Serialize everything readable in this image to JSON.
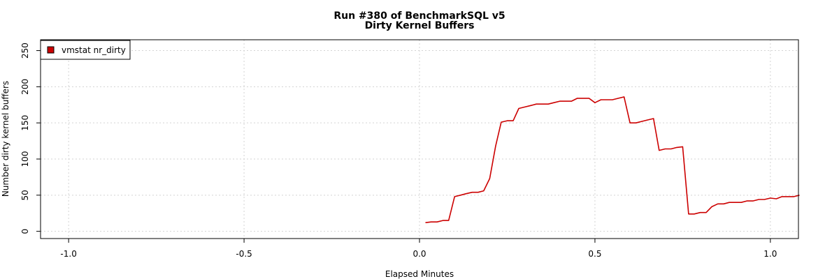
{
  "chart_data": {
    "type": "line",
    "title": "Run #380 of BenchmarkSQL v5",
    "subtitle": "Dirty Kernel Buffers",
    "xlabel": "Elapsed Minutes",
    "ylabel": "Number dirty kernel buffers",
    "xlim": [
      -1.08,
      1.08
    ],
    "ylim": [
      -10,
      265
    ],
    "x_ticks": [
      -1.0,
      -0.5,
      0.0,
      0.5,
      1.0
    ],
    "x_tick_labels": [
      "-1.0",
      "-0.5",
      "0.0",
      "0.5",
      "1.0"
    ],
    "y_ticks": [
      0,
      50,
      100,
      150,
      200,
      250
    ],
    "y_tick_labels": [
      "0",
      "50",
      "100",
      "150",
      "200",
      "250"
    ],
    "grid": true,
    "legend": {
      "position": "top-left",
      "entries": [
        "vmstat nr_dirty"
      ]
    },
    "series": [
      {
        "name": "vmstat nr_dirty",
        "color": "#cc0000",
        "x": [
          0.017,
          0.033,
          0.05,
          0.067,
          0.083,
          0.1,
          0.117,
          0.133,
          0.15,
          0.167,
          0.183,
          0.2,
          0.217,
          0.233,
          0.25,
          0.267,
          0.283,
          0.3,
          0.317,
          0.333,
          0.35,
          0.367,
          0.383,
          0.4,
          0.417,
          0.433,
          0.45,
          0.467,
          0.483,
          0.5,
          0.517,
          0.533,
          0.55,
          0.567,
          0.583,
          0.6,
          0.617,
          0.633,
          0.65,
          0.667,
          0.683,
          0.7,
          0.717,
          0.733,
          0.75,
          0.767,
          0.783,
          0.8,
          0.817,
          0.833,
          0.85,
          0.867,
          0.883,
          0.9,
          0.917,
          0.933,
          0.95,
          0.967,
          0.983,
          1.0,
          1.017,
          1.033,
          1.05,
          1.067,
          1.083
        ],
        "y": [
          12,
          13,
          13,
          15,
          15,
          48,
          50,
          52,
          54,
          54,
          56,
          73,
          118,
          151,
          153,
          153,
          170,
          172,
          174,
          176,
          176,
          176,
          178,
          180,
          180,
          180,
          184,
          184,
          184,
          178,
          182,
          182,
          182,
          184,
          186,
          150,
          150,
          152,
          154,
          156,
          112,
          114,
          114,
          116,
          117,
          24,
          24,
          26,
          26,
          34,
          38,
          38,
          40,
          40,
          40,
          42,
          42,
          44,
          44,
          46,
          45,
          48,
          48,
          48,
          50
        ]
      }
    ]
  }
}
